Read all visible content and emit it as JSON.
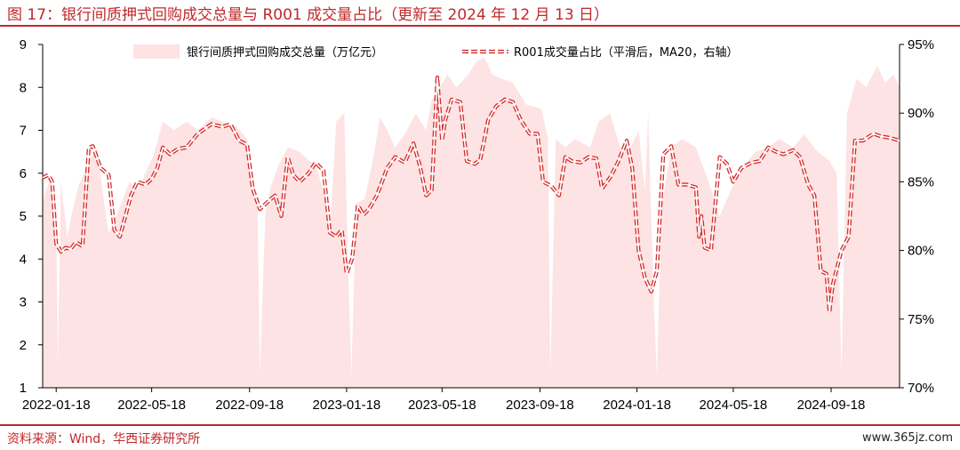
{
  "title": "图 17：银行间质押式回购成交总量与 R001 成交量占比（更新至 2024 年 12 月 13 日）",
  "source": "资料来源：Wind，华西证券研究所",
  "watermark": "www.365jz.com",
  "colors": {
    "title": "#c0282b",
    "area_fill": "#fde3e3",
    "line": "#d42a2a",
    "axis": "#000000"
  },
  "chart_data": {
    "type": "area+line",
    "title": "",
    "x_axis": {
      "tick_labels": [
        "2022-01-18",
        "2022-05-18",
        "2022-09-18",
        "2023-01-18",
        "2023-05-18",
        "2023-09-18",
        "2024-01-18",
        "2024-05-18",
        "2024-09-18"
      ],
      "range": [
        "2022-01-01",
        "2024-12-13"
      ]
    },
    "y_left": {
      "range": [
        1,
        9
      ],
      "ticks": [
        "1",
        "2",
        "3",
        "4",
        "5",
        "6",
        "7",
        "8",
        "9"
      ]
    },
    "y_right": {
      "range": [
        70,
        95
      ],
      "ticks": [
        "70%",
        "75%",
        "80%",
        "85%",
        "90%",
        "95%"
      ]
    },
    "legend_placement": "top",
    "series": [
      {
        "name": "银行间质押式回购成交总量（万亿元）",
        "kind": "area",
        "axis": "left",
        "unit": "万亿元",
        "points": [
          [
            "2022-01-01",
            5.3
          ],
          [
            "2022-01-05",
            5.6
          ],
          [
            "2022-01-12",
            5.9
          ],
          [
            "2022-01-18",
            5.2
          ],
          [
            "2022-01-20",
            1.5
          ],
          [
            "2022-01-24",
            5.8
          ],
          [
            "2022-02-01",
            4.5
          ],
          [
            "2022-02-06",
            5.0
          ],
          [
            "2022-02-15",
            5.7
          ],
          [
            "2022-03-01",
            6.3
          ],
          [
            "2022-03-10",
            6.6
          ],
          [
            "2022-03-20",
            5.2
          ],
          [
            "2022-03-25",
            4.6
          ],
          [
            "2022-04-01",
            4.9
          ],
          [
            "2022-04-10",
            5.3
          ],
          [
            "2022-04-20",
            5.8
          ],
          [
            "2022-05-01",
            5.6
          ],
          [
            "2022-05-10",
            6.0
          ],
          [
            "2022-05-20",
            6.4
          ],
          [
            "2022-06-01",
            7.2
          ],
          [
            "2022-06-15",
            7.0
          ],
          [
            "2022-07-01",
            7.2
          ],
          [
            "2022-07-15",
            7.0
          ],
          [
            "2022-08-01",
            7.3
          ],
          [
            "2022-08-15",
            7.2
          ],
          [
            "2022-09-01",
            7.1
          ],
          [
            "2022-09-15",
            6.8
          ],
          [
            "2022-09-28",
            5.2
          ],
          [
            "2022-10-01",
            1.3
          ],
          [
            "2022-10-08",
            5.1
          ],
          [
            "2022-10-15",
            5.7
          ],
          [
            "2022-10-25",
            6.2
          ],
          [
            "2022-11-05",
            6.6
          ],
          [
            "2022-11-20",
            6.5
          ],
          [
            "2022-12-01",
            6.3
          ],
          [
            "2022-12-10",
            6.2
          ],
          [
            "2022-12-20",
            5.6
          ],
          [
            "2022-12-28",
            4.6
          ],
          [
            "2023-01-05",
            7.2
          ],
          [
            "2023-01-15",
            7.4
          ],
          [
            "2023-01-20",
            3.7
          ],
          [
            "2023-01-24",
            1.3
          ],
          [
            "2023-01-30",
            5.3
          ],
          [
            "2023-02-10",
            5.4
          ],
          [
            "2023-02-20",
            6.3
          ],
          [
            "2023-03-01",
            7.3
          ],
          [
            "2023-03-10",
            7.0
          ],
          [
            "2023-03-20",
            6.6
          ],
          [
            "2023-04-01",
            6.9
          ],
          [
            "2023-04-15",
            7.4
          ],
          [
            "2023-04-28",
            7.0
          ],
          [
            "2023-05-05",
            7.7
          ],
          [
            "2023-05-15",
            8.0
          ],
          [
            "2023-05-25",
            8.3
          ],
          [
            "2023-06-05",
            8.0
          ],
          [
            "2023-06-20",
            8.3
          ],
          [
            "2023-06-30",
            8.6
          ],
          [
            "2023-07-10",
            8.7
          ],
          [
            "2023-07-20",
            8.3
          ],
          [
            "2023-08-01",
            8.2
          ],
          [
            "2023-08-15",
            8.1
          ],
          [
            "2023-09-01",
            7.6
          ],
          [
            "2023-09-20",
            7.5
          ],
          [
            "2023-09-28",
            6.8
          ],
          [
            "2023-10-01",
            1.3
          ],
          [
            "2023-10-08",
            6.8
          ],
          [
            "2023-10-20",
            6.6
          ],
          [
            "2023-11-01",
            6.8
          ],
          [
            "2023-11-20",
            6.6
          ],
          [
            "2023-12-01",
            7.2
          ],
          [
            "2023-12-15",
            7.4
          ],
          [
            "2023-12-28",
            6.6
          ],
          [
            "2024-01-10",
            6.6
          ],
          [
            "2024-01-20",
            7.0
          ],
          [
            "2024-01-28",
            5.6
          ],
          [
            "2024-02-01",
            7.4
          ],
          [
            "2024-02-08",
            3.0
          ],
          [
            "2024-02-12",
            1.3
          ],
          [
            "2024-02-18",
            5.2
          ],
          [
            "2024-03-01",
            6.6
          ],
          [
            "2024-03-15",
            6.8
          ],
          [
            "2024-04-01",
            6.6
          ],
          [
            "2024-04-15",
            5.9
          ],
          [
            "2024-05-01",
            5.0
          ],
          [
            "2024-05-15",
            5.6
          ],
          [
            "2024-06-01",
            6.2
          ],
          [
            "2024-06-15",
            6.5
          ],
          [
            "2024-07-01",
            6.6
          ],
          [
            "2024-07-15",
            6.8
          ],
          [
            "2024-08-01",
            6.6
          ],
          [
            "2024-08-15",
            6.9
          ],
          [
            "2024-09-01",
            6.5
          ],
          [
            "2024-09-15",
            6.3
          ],
          [
            "2024-09-25",
            6.0
          ],
          [
            "2024-10-01",
            1.3
          ],
          [
            "2024-10-08",
            7.4
          ],
          [
            "2024-10-20",
            8.2
          ],
          [
            "2024-11-01",
            8.0
          ],
          [
            "2024-11-15",
            8.5
          ],
          [
            "2024-11-25",
            8.1
          ],
          [
            "2024-12-05",
            8.3
          ],
          [
            "2024-12-13",
            8.0
          ]
        ]
      },
      {
        "name": "R001成交量占比（平滑后，MA20，右轴）",
        "kind": "line",
        "axis": "right",
        "unit": "%",
        "points": [
          [
            "2022-01-01",
            85.3
          ],
          [
            "2022-01-08",
            85.5
          ],
          [
            "2022-01-13",
            85.0
          ],
          [
            "2022-01-18",
            80.5
          ],
          [
            "2022-01-24",
            79.9
          ],
          [
            "2022-01-30",
            80.2
          ],
          [
            "2022-02-05",
            80.1
          ],
          [
            "2022-02-12",
            80.6
          ],
          [
            "2022-02-20",
            80.3
          ],
          [
            "2022-02-28",
            87.5
          ],
          [
            "2022-03-05",
            87.6
          ],
          [
            "2022-03-15",
            86.0
          ],
          [
            "2022-03-25",
            85.5
          ],
          [
            "2022-04-01",
            81.5
          ],
          [
            "2022-04-08",
            81.0
          ],
          [
            "2022-04-15",
            82.5
          ],
          [
            "2022-04-22",
            84.0
          ],
          [
            "2022-04-30",
            85.0
          ],
          [
            "2022-05-10",
            84.8
          ],
          [
            "2022-05-18",
            85.2
          ],
          [
            "2022-05-25",
            86.0
          ],
          [
            "2022-06-01",
            87.5
          ],
          [
            "2022-06-10",
            87.0
          ],
          [
            "2022-06-20",
            87.4
          ],
          [
            "2022-07-01",
            87.5
          ],
          [
            "2022-07-15",
            88.5
          ],
          [
            "2022-08-01",
            89.2
          ],
          [
            "2022-08-15",
            89.0
          ],
          [
            "2022-08-25",
            89.2
          ],
          [
            "2022-09-05",
            88.0
          ],
          [
            "2022-09-15",
            87.7
          ],
          [
            "2022-09-22",
            84.5
          ],
          [
            "2022-10-01",
            83.0
          ],
          [
            "2022-10-12",
            83.6
          ],
          [
            "2022-10-20",
            84.0
          ],
          [
            "2022-10-28",
            82.5
          ],
          [
            "2022-11-05",
            86.8
          ],
          [
            "2022-11-12",
            85.5
          ],
          [
            "2022-11-20",
            85.0
          ],
          [
            "2022-12-01",
            85.6
          ],
          [
            "2022-12-10",
            86.4
          ],
          [
            "2022-12-20",
            85.8
          ],
          [
            "2022-12-28",
            81.3
          ],
          [
            "2023-01-05",
            81.0
          ],
          [
            "2023-01-12",
            81.5
          ],
          [
            "2023-01-18",
            78.3
          ],
          [
            "2023-01-25",
            79.4
          ],
          [
            "2023-02-01",
            83.3
          ],
          [
            "2023-02-08",
            82.6
          ],
          [
            "2023-02-15",
            83.0
          ],
          [
            "2023-02-25",
            84.0
          ],
          [
            "2023-03-10",
            86.0
          ],
          [
            "2023-03-20",
            86.8
          ],
          [
            "2023-04-01",
            86.4
          ],
          [
            "2023-04-12",
            87.8
          ],
          [
            "2023-04-20",
            86.2
          ],
          [
            "2023-04-28",
            84.0
          ],
          [
            "2023-05-05",
            84.4
          ],
          [
            "2023-05-12",
            92.6
          ],
          [
            "2023-05-18",
            88.0
          ],
          [
            "2023-05-22",
            89.5
          ],
          [
            "2023-05-30",
            91.0
          ],
          [
            "2023-06-10",
            90.8
          ],
          [
            "2023-06-18",
            86.5
          ],
          [
            "2023-06-28",
            86.3
          ],
          [
            "2023-07-05",
            86.6
          ],
          [
            "2023-07-15",
            89.5
          ],
          [
            "2023-07-25",
            90.5
          ],
          [
            "2023-08-05",
            91.0
          ],
          [
            "2023-08-15",
            90.8
          ],
          [
            "2023-08-25",
            89.5
          ],
          [
            "2023-09-05",
            88.5
          ],
          [
            "2023-09-15",
            88.5
          ],
          [
            "2023-09-22",
            85.0
          ],
          [
            "2023-10-02",
            84.7
          ],
          [
            "2023-10-12",
            84.0
          ],
          [
            "2023-10-20",
            86.8
          ],
          [
            "2023-10-28",
            86.5
          ],
          [
            "2023-11-08",
            86.4
          ],
          [
            "2023-11-18",
            86.8
          ],
          [
            "2023-11-28",
            86.7
          ],
          [
            "2023-12-05",
            84.5
          ],
          [
            "2023-12-15",
            85.3
          ],
          [
            "2023-12-25",
            86.4
          ],
          [
            "2024-01-05",
            88.0
          ],
          [
            "2024-01-12",
            86.0
          ],
          [
            "2024-01-20",
            80.0
          ],
          [
            "2024-01-28",
            78.0
          ],
          [
            "2024-02-05",
            77.0
          ],
          [
            "2024-02-12",
            78.5
          ],
          [
            "2024-02-20",
            87.0
          ],
          [
            "2024-03-01",
            87.6
          ],
          [
            "2024-03-10",
            84.8
          ],
          [
            "2024-03-20",
            84.8
          ],
          [
            "2024-04-01",
            84.6
          ],
          [
            "2024-04-05",
            81.0
          ],
          [
            "2024-04-08",
            82.5
          ],
          [
            "2024-04-12",
            80.2
          ],
          [
            "2024-04-20",
            80.0
          ],
          [
            "2024-05-01",
            86.8
          ],
          [
            "2024-05-10",
            86.3
          ],
          [
            "2024-05-18",
            85.0
          ],
          [
            "2024-05-28",
            86.0
          ],
          [
            "2024-06-10",
            86.4
          ],
          [
            "2024-06-20",
            86.5
          ],
          [
            "2024-07-01",
            87.5
          ],
          [
            "2024-07-10",
            87.2
          ],
          [
            "2024-07-20",
            87.0
          ],
          [
            "2024-08-01",
            87.3
          ],
          [
            "2024-08-10",
            86.8
          ],
          [
            "2024-08-20",
            84.8
          ],
          [
            "2024-08-28",
            84.0
          ],
          [
            "2024-09-05",
            78.5
          ],
          [
            "2024-09-12",
            78.3
          ],
          [
            "2024-09-16",
            75.5
          ],
          [
            "2024-09-20",
            77.5
          ],
          [
            "2024-10-01",
            80.0
          ],
          [
            "2024-10-10",
            81.0
          ],
          [
            "2024-10-18",
            88.0
          ],
          [
            "2024-10-28",
            88.0
          ],
          [
            "2024-11-10",
            88.5
          ],
          [
            "2024-11-20",
            88.3
          ],
          [
            "2024-12-01",
            88.2
          ],
          [
            "2024-12-13",
            88.0
          ]
        ]
      }
    ]
  }
}
